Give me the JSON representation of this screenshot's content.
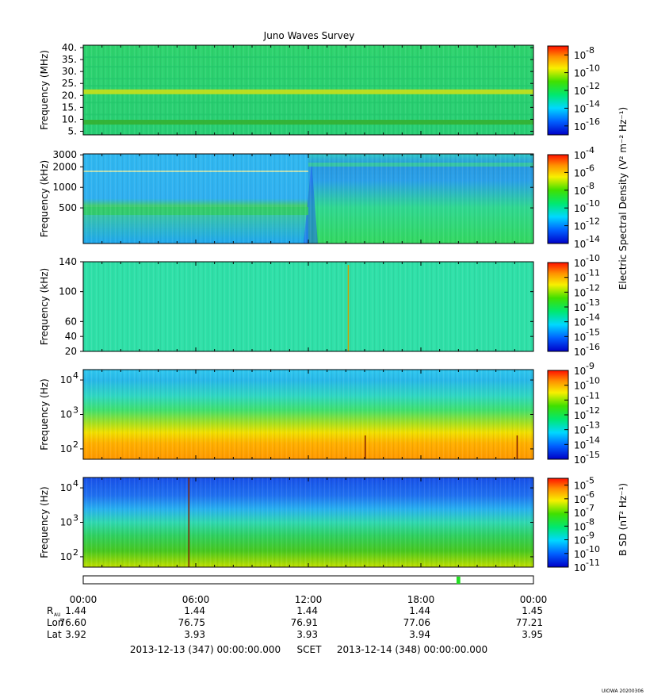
{
  "title": "Juno Waves Survey",
  "footer_left": "2013-12-13 (347) 00:00:00.000",
  "footer_mid": "SCET",
  "footer_right": "2013-12-14 (348) 00:00:00.000",
  "stamp": "UIOWA 20200306",
  "colorbar_labels": {
    "electric": "Electric Spectral Density (V² m⁻² Hz⁻¹)",
    "magnetic": "B SD (nT² Hz⁻¹)"
  },
  "x_ticks": [
    "00:00",
    "06:00",
    "12:00",
    "18:00",
    "00:00"
  ],
  "ephemeris": [
    {
      "name": "R_AU",
      "label": "R",
      "sub": "AU",
      "values": [
        "1.44",
        "1.44",
        "1.44",
        "1.44",
        "1.45"
      ]
    },
    {
      "name": "Lon",
      "label": "Lon",
      "sub": "",
      "values": [
        "76.60",
        "76.75",
        "76.91",
        "77.06",
        "77.21"
      ]
    },
    {
      "name": "Lat",
      "label": "Lat",
      "sub": "",
      "values": [
        "3.92",
        "3.93",
        "3.93",
        "3.94",
        "3.95"
      ]
    }
  ],
  "coverage_bar": {
    "start_hour": 19.9,
    "end_hour": 20.1,
    "color": "#22dd22"
  },
  "chart_data": [
    {
      "type": "heatmap",
      "panel": "HFR high",
      "ylabel": "Frequency (MHz)",
      "yscale": "linear",
      "ylim": [
        3.5,
        41
      ],
      "yticks": [
        {
          "v": 40,
          "t": "40."
        },
        {
          "v": 35,
          "t": "35."
        },
        {
          "v": 30,
          "t": "30."
        },
        {
          "v": 25,
          "t": "25."
        },
        {
          "v": 20,
          "t": "20."
        },
        {
          "v": 15,
          "t": "15."
        },
        {
          "v": 10,
          "t": "10."
        },
        {
          "v": 5,
          "t": "5."
        }
      ],
      "colorbar": {
        "min_exp": -17,
        "max_exp": -7,
        "ticks": [
          {
            "e": -8,
            "t": "-8"
          },
          {
            "e": -10,
            "t": "-10"
          },
          {
            "e": -12,
            "t": "-12"
          },
          {
            "e": -14,
            "t": "-14"
          },
          {
            "e": -16,
            "t": "-16"
          }
        ]
      },
      "features": [
        {
          "kind": "band",
          "y_center": 21.5,
          "color": "#c8e01a"
        },
        {
          "kind": "band",
          "y_center": 8.8,
          "color": "#34b032"
        }
      ],
      "background": "#2ad86a"
    },
    {
      "type": "heatmap",
      "panel": "HFR low",
      "ylabel": "Frequency (kHz)",
      "yscale": "log",
      "ylim": [
        150,
        3100
      ],
      "yticks": [
        {
          "v": 3000,
          "t": "3000"
        },
        {
          "v": 2000,
          "t": "2000"
        },
        {
          "v": 1000,
          "t": "1000"
        },
        {
          "v": 500,
          "t": "500"
        }
      ],
      "colorbar": {
        "min_exp": -14,
        "max_exp": -4,
        "ticks": [
          {
            "e": -4,
            "t": "-4"
          },
          {
            "e": -6,
            "t": "-6"
          },
          {
            "e": -8,
            "t": "-8"
          },
          {
            "e": -10,
            "t": "-10"
          },
          {
            "e": -12,
            "t": "-12"
          },
          {
            "e": -14,
            "t": "-14"
          }
        ]
      },
      "features": [
        {
          "kind": "transition",
          "hour": 12.0
        },
        {
          "kind": "band",
          "y_center": 450,
          "hour_end": 12.0,
          "color": "#33cc66"
        }
      ],
      "background": "#2aaee8"
    },
    {
      "type": "heatmap",
      "panel": "LFR high",
      "ylabel": "Frequency (kHz)",
      "yscale": "linear",
      "ylim": [
        20,
        140
      ],
      "yticks": [
        {
          "v": 140,
          "t": "140"
        },
        {
          "v": 100,
          "t": "100"
        },
        {
          "v": 60,
          "t": "60"
        },
        {
          "v": 40,
          "t": "40"
        },
        {
          "v": 20,
          "t": "20"
        }
      ],
      "colorbar": {
        "min_exp": -16,
        "max_exp": -10,
        "ticks": [
          {
            "e": -10,
            "t": "-10"
          },
          {
            "e": -11,
            "t": "-11"
          },
          {
            "e": -12,
            "t": "-12"
          },
          {
            "e": -13,
            "t": "-13"
          },
          {
            "e": -14,
            "t": "-14"
          },
          {
            "e": -15,
            "t": "-15"
          },
          {
            "e": -16,
            "t": "-16"
          }
        ]
      },
      "features": [
        {
          "kind": "spike",
          "hour": 14.1,
          "color": "#d0a000"
        }
      ],
      "background": "#2fe0a8"
    },
    {
      "type": "heatmap",
      "panel": "LFR low (E)",
      "ylabel": "Frequency (Hz)",
      "yscale": "log",
      "ylim": [
        50,
        20000
      ],
      "yticks": [
        {
          "v": 10000,
          "t": "10",
          "sup": "4"
        },
        {
          "v": 1000,
          "t": "10",
          "sup": "3"
        },
        {
          "v": 100,
          "t": "10",
          "sup": "2"
        }
      ],
      "colorbar": {
        "min_exp": -15,
        "max_exp": -9,
        "ticks": [
          {
            "e": -9,
            "t": "-9"
          },
          {
            "e": -10,
            "t": "-10"
          },
          {
            "e": -11,
            "t": "-11"
          },
          {
            "e": -12,
            "t": "-12"
          },
          {
            "e": -13,
            "t": "-13"
          },
          {
            "e": -14,
            "t": "-14"
          },
          {
            "e": -15,
            "t": "-15"
          }
        ]
      },
      "features": [
        {
          "kind": "spike",
          "hour": 15.0,
          "color": "#802000"
        },
        {
          "kind": "spike",
          "hour": 23.1,
          "color": "#802000"
        }
      ],
      "background": "gradient-e"
    },
    {
      "type": "heatmap",
      "panel": "LFR low (B)",
      "ylabel": "Frequency (Hz)",
      "yscale": "log",
      "ylim": [
        50,
        20000
      ],
      "yticks": [
        {
          "v": 10000,
          "t": "10",
          "sup": "4"
        },
        {
          "v": 1000,
          "t": "10",
          "sup": "3"
        },
        {
          "v": 100,
          "t": "10",
          "sup": "2"
        }
      ],
      "colorbar": {
        "min_exp": -11,
        "max_exp": -4.5,
        "ticks": [
          {
            "e": -5,
            "t": "-5"
          },
          {
            "e": -6,
            "t": "-6"
          },
          {
            "e": -7,
            "t": "-7"
          },
          {
            "e": -8,
            "t": "-8"
          },
          {
            "e": -9,
            "t": "-9"
          },
          {
            "e": -10,
            "t": "-10"
          },
          {
            "e": -11,
            "t": "-11"
          }
        ]
      },
      "features": [
        {
          "kind": "spike",
          "hour": 5.6,
          "color": "#802000"
        }
      ],
      "background": "gradient-b"
    }
  ]
}
